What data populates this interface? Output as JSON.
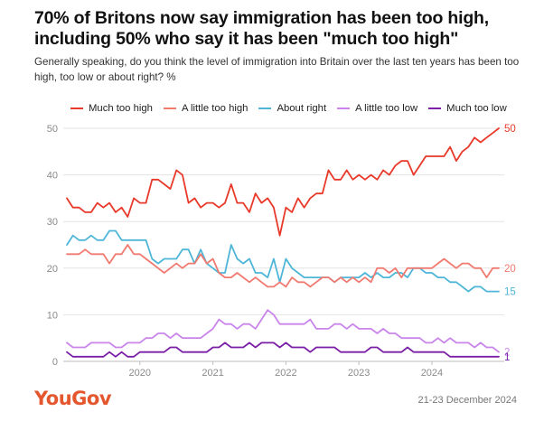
{
  "header": {
    "title": "70% of Britons now say immigration has been too high, including 50% who say it has been \"much too high\"",
    "subtitle": "Generally speaking, do you think the level of immigration into Britain over the last ten years has been too high, too low or about right? %"
  },
  "footer": {
    "logo": "YouGov",
    "date": "21-23 December 2024"
  },
  "chart_data": {
    "type": "line",
    "x_ticks": [
      "2020",
      "2021",
      "2022",
      "2023",
      "2024"
    ],
    "y_ticks": [
      0,
      10,
      20,
      30,
      40,
      50
    ],
    "ylim": [
      0,
      50
    ],
    "xlim": [
      "2019-07",
      "2024-12"
    ],
    "grid": true,
    "legend": "top",
    "series": [
      {
        "name": "Much too high",
        "color": "#e8392a",
        "end_label": "50",
        "values": [
          35,
          33,
          33,
          32,
          32,
          34,
          33,
          34,
          32,
          33,
          31,
          35,
          34,
          34,
          39,
          39,
          38,
          37,
          41,
          40,
          34,
          35,
          33,
          34,
          34,
          33,
          34,
          38,
          34,
          34,
          32,
          36,
          34,
          35,
          33,
          27,
          33,
          32,
          35,
          33,
          35,
          36,
          36,
          41,
          39,
          39,
          41,
          39,
          40,
          39,
          40,
          39,
          41,
          40,
          42,
          43,
          43,
          40,
          42,
          44,
          44,
          44,
          44,
          46,
          43,
          45,
          46,
          48,
          47,
          48,
          49,
          50
        ]
      },
      {
        "name": "A little too high",
        "color": "#f07a70",
        "end_label": "20",
        "values": [
          23,
          23,
          23,
          24,
          23,
          23,
          23,
          21,
          23,
          23,
          25,
          23,
          23,
          22,
          21,
          20,
          19,
          20,
          21,
          20,
          21,
          21,
          23,
          21,
          22,
          19,
          18,
          18,
          19,
          18,
          17,
          18,
          17,
          16,
          16,
          17,
          16,
          18,
          17,
          17,
          16,
          17,
          18,
          18,
          17,
          18,
          17,
          18,
          17,
          18,
          17,
          20,
          20,
          19,
          20,
          18,
          20,
          20,
          20,
          20,
          20,
          21,
          22,
          21,
          20,
          21,
          21,
          20,
          20,
          18,
          20,
          20
        ]
      },
      {
        "name": "About right",
        "color": "#4fb6d8",
        "end_label": "15",
        "values": [
          25,
          27,
          26,
          26,
          27,
          26,
          26,
          28,
          28,
          26,
          26,
          26,
          26,
          26,
          22,
          21,
          22,
          22,
          22,
          24,
          24,
          21,
          24,
          21,
          20,
          19,
          19,
          25,
          22,
          21,
          22,
          19,
          19,
          18,
          22,
          17,
          22,
          20,
          19,
          18,
          18,
          18,
          18,
          18,
          17,
          18,
          18,
          18,
          18,
          19,
          18,
          19,
          18,
          18,
          19,
          19,
          18,
          20,
          20,
          19,
          19,
          18,
          18,
          17,
          17,
          16,
          15,
          16,
          16,
          15,
          15,
          15
        ]
      },
      {
        "name": "A little too low",
        "color": "#c985ea",
        "end_label": "2",
        "values": [
          4,
          3,
          3,
          3,
          4,
          4,
          4,
          4,
          3,
          3,
          4,
          4,
          4,
          5,
          5,
          6,
          6,
          5,
          6,
          5,
          5,
          5,
          5,
          6,
          7,
          9,
          8,
          8,
          7,
          8,
          8,
          7,
          9,
          11,
          10,
          8,
          8,
          8,
          8,
          8,
          9,
          7,
          7,
          7,
          8,
          8,
          7,
          8,
          7,
          7,
          7,
          6,
          7,
          6,
          6,
          5,
          5,
          5,
          5,
          4,
          4,
          5,
          4,
          5,
          4,
          4,
          4,
          3,
          4,
          3,
          3,
          2
        ]
      },
      {
        "name": "Much too low",
        "color": "#7a1fa6",
        "end_label": "1",
        "values": [
          2,
          1,
          1,
          1,
          1,
          1,
          1,
          2,
          1,
          2,
          1,
          1,
          2,
          2,
          2,
          2,
          2,
          3,
          3,
          2,
          2,
          2,
          2,
          2,
          3,
          3,
          4,
          3,
          3,
          3,
          4,
          3,
          4,
          4,
          4,
          3,
          4,
          3,
          3,
          3,
          2,
          3,
          3,
          3,
          3,
          2,
          2,
          2,
          2,
          2,
          3,
          3,
          2,
          2,
          2,
          2,
          3,
          2,
          2,
          2,
          2,
          2,
          2,
          1,
          1,
          1,
          1,
          1,
          1,
          1,
          1,
          1
        ]
      }
    ]
  }
}
